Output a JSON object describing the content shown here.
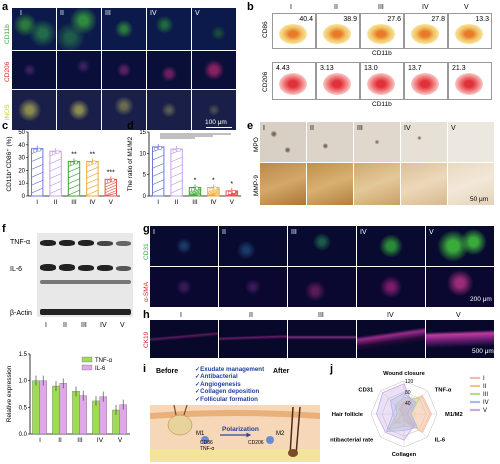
{
  "panel_letters": [
    "a",
    "b",
    "c",
    "d",
    "e",
    "f",
    "g",
    "h",
    "i",
    "j"
  ],
  "groups": [
    "I",
    "II",
    "III",
    "IV",
    "V"
  ],
  "panel_a": {
    "row_labels": [
      "CD11b",
      "CD206",
      "iNOS"
    ],
    "scale_bar": "100 μm"
  },
  "panel_b": {
    "top_axis_y": "CD86",
    "top_axis_x": "CD11b",
    "bottom_axis_y": "CD206",
    "bottom_axis_x": "CD11b",
    "top_values": [
      "40.4",
      "38.9",
      "27.6",
      "27.8",
      "13.3"
    ],
    "bottom_values": [
      "4.43",
      "3.13",
      "13.0",
      "13.7",
      "21.3"
    ]
  },
  "panel_c": {
    "ylabel": "CD11b⁺CD86⁺ (%)",
    "sig": [
      "",
      "",
      "**",
      "**",
      "***"
    ]
  },
  "panel_d": {
    "ylabel": "The ratio of M1/M2",
    "sig": [
      "",
      "",
      "*",
      "*",
      "*"
    ]
  },
  "panel_e": {
    "row_labels": [
      "MPO",
      "MMP-9"
    ],
    "scale_bar": "50 μm"
  },
  "panel_f": {
    "blot_labels": [
      "TNF-α",
      "IL-6",
      "β-Actin"
    ],
    "legend": [
      "TNF-α",
      "IL-6"
    ],
    "ylabel": "Relative expression"
  },
  "panel_g": {
    "row_labels": [
      "CD31",
      "α-SMA"
    ],
    "scale_bar": "200 μm"
  },
  "panel_h": {
    "row_label": "CK19",
    "scale_bar": "500 μm"
  },
  "panel_i": {
    "before": "Before",
    "after": "After",
    "benefits": [
      "✓Exudate management",
      "✓Antibacterial",
      "✓Angiogenesis",
      "✓Collagen deposition",
      "✓Follicular formation"
    ],
    "polarization": "Polarization",
    "m1": "M1",
    "m2": "M2",
    "markers": [
      "CD86",
      "TNF-α",
      "CD206"
    ]
  },
  "panel_j": {
    "axes": [
      "Wound closure",
      "TNF-α",
      "M1/M2",
      "IL-6",
      "Collagen",
      "Antibacterial rate",
      "Hair follicle",
      "CD31"
    ],
    "ticks": [
      "120",
      "80",
      "40"
    ],
    "legend": [
      "I",
      "II",
      "III",
      "IV",
      "V"
    ]
  },
  "chart_data": [
    {
      "type": "bar",
      "panel": "c",
      "categories": [
        "I",
        "II",
        "III",
        "IV",
        "V"
      ],
      "values": [
        37,
        35,
        27,
        27,
        13
      ],
      "ylabel": "CD11b⁺CD86⁺ (%)",
      "ylim": [
        0,
        50
      ],
      "yticks": [
        0,
        10,
        20,
        30,
        40,
        50
      ],
      "colors": [
        "#6a7bd6",
        "#c9a0e8",
        "#3ea335",
        "#f0a830",
        "#e8554e"
      ]
    },
    {
      "type": "bar",
      "panel": "d",
      "categories": [
        "I",
        "II",
        "III",
        "IV",
        "V"
      ],
      "values": [
        11.5,
        11.0,
        2.0,
        2.0,
        1.2
      ],
      "ylabel": "The ratio of M1/M2",
      "ylim": [
        0,
        15
      ],
      "yticks": [
        0,
        5,
        10,
        15
      ],
      "colors": [
        "#6a7bd6",
        "#c9a0e8",
        "#3ea335",
        "#f0a830",
        "#e8554e"
      ]
    },
    {
      "type": "bar",
      "panel": "f",
      "categories": [
        "I",
        "II",
        "III",
        "IV",
        "V"
      ],
      "series": [
        {
          "name": "TNF-α",
          "values": [
            1.0,
            0.9,
            0.8,
            0.62,
            0.45
          ]
        },
        {
          "name": "IL-6",
          "values": [
            1.0,
            0.95,
            0.72,
            0.7,
            0.55
          ]
        }
      ],
      "ylabel": "Relative expression",
      "ylim": [
        0,
        1.5
      ],
      "yticks": [
        0.0,
        0.5,
        1.0,
        1.5
      ],
      "colors": [
        "#9edc54",
        "#e0a8e8"
      ]
    },
    {
      "type": "radar",
      "panel": "j",
      "axes": [
        "Wound closure",
        "TNF-α",
        "M1/M2",
        "IL-6",
        "Collagen",
        "Antibacterial rate",
        "Hair follicle",
        "CD31"
      ],
      "rmax": 120,
      "series": [
        {
          "name": "I",
          "values": [
            40,
            95,
            100,
            95,
            20,
            5,
            5,
            20
          ]
        },
        {
          "name": "II",
          "values": [
            45,
            90,
            95,
            90,
            25,
            50,
            8,
            25
          ]
        },
        {
          "name": "III",
          "values": [
            60,
            80,
            25,
            70,
            45,
            80,
            25,
            45
          ]
        },
        {
          "name": "IV",
          "values": [
            75,
            60,
            25,
            68,
            60,
            90,
            40,
            70
          ]
        },
        {
          "name": "V",
          "values": [
            110,
            45,
            12,
            55,
            95,
            95,
            100,
            110
          ]
        }
      ],
      "colors": [
        "#f4b6b6",
        "#f3c58d",
        "#b6dc8a",
        "#a9b7ea",
        "#c7a9e6"
      ]
    }
  ]
}
